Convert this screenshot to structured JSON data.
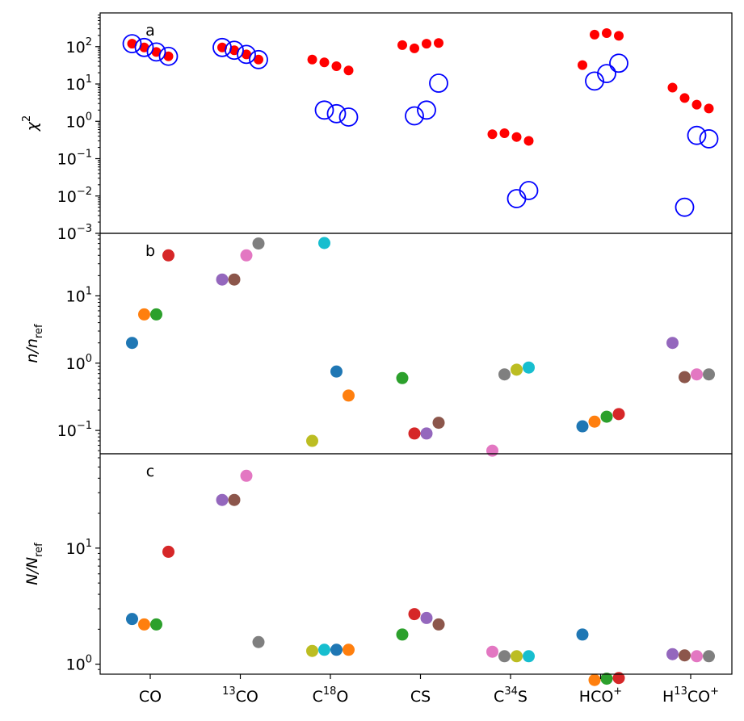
{
  "chart_data": {
    "type": "scatter",
    "x_categories": [
      {
        "base": "CO",
        "sup": "",
        "pre": "",
        "suffix": "",
        "supEnd": ""
      },
      {
        "base": "CO",
        "sup": "",
        "pre": "13",
        "suffix": "",
        "supEnd": ""
      },
      {
        "base": "C",
        "sup": "18",
        "pre": "",
        "suffix": "O",
        "supEnd": ""
      },
      {
        "base": "CS",
        "sup": "",
        "pre": "",
        "suffix": "",
        "supEnd": ""
      },
      {
        "base": "C",
        "sup": "34",
        "pre": "",
        "suffix": "S",
        "supEnd": ""
      },
      {
        "base": "HCO",
        "sup": "",
        "pre": "",
        "suffix": "",
        "supEnd": "+"
      },
      {
        "base": "H",
        "sup": "13",
        "pre": "",
        "suffix": "CO",
        "supEnd": "+"
      }
    ],
    "panels": [
      {
        "label": "a",
        "ylabel_base": "χ",
        "ylabel_sup": "2",
        "ylabel_sub": "",
        "ylim": [
          0.001,
          800
        ],
        "yticks": [
          {
            "value": 100,
            "mant": "10",
            "exp": "2"
          },
          {
            "value": 10,
            "mant": "10",
            "exp": "1"
          },
          {
            "value": 1,
            "mant": "10",
            "exp": "0"
          },
          {
            "value": 0.1,
            "mant": "10",
            "exp": "−1"
          },
          {
            "value": 0.01,
            "mant": "10",
            "exp": "−2"
          },
          {
            "value": 0.001,
            "mant": "10",
            "exp": "−3"
          }
        ],
        "series": [
          {
            "name": "red dots",
            "marker": "filled",
            "color": "#ff0000",
            "points": [
              [
                0,
                -0.3,
                120
              ],
              [
                0,
                -0.1,
                95
              ],
              [
                0,
                0.1,
                72
              ],
              [
                0,
                0.3,
                55
              ],
              [
                1,
                -0.3,
                95
              ],
              [
                1,
                -0.1,
                80
              ],
              [
                1,
                0.1,
                62
              ],
              [
                1,
                0.3,
                45
              ],
              [
                2,
                -0.3,
                45
              ],
              [
                2,
                -0.1,
                38
              ],
              [
                2,
                0.1,
                30
              ],
              [
                2,
                0.3,
                23
              ],
              [
                3,
                -0.3,
                110
              ],
              [
                3,
                -0.1,
                90
              ],
              [
                3,
                0.1,
                120
              ],
              [
                3,
                0.3,
                125
              ],
              [
                4,
                -0.3,
                0.45
              ],
              [
                4,
                -0.1,
                0.48
              ],
              [
                4,
                0.1,
                0.38
              ],
              [
                4,
                0.3,
                0.3
              ],
              [
                5,
                -0.3,
                32
              ],
              [
                5,
                -0.1,
                210
              ],
              [
                5,
                0.1,
                230
              ],
              [
                5,
                0.3,
                195
              ],
              [
                6,
                -0.3,
                8
              ],
              [
                6,
                -0.1,
                4.2
              ],
              [
                6,
                0.1,
                2.8
              ],
              [
                6,
                0.3,
                2.2
              ]
            ]
          },
          {
            "name": "blue circles",
            "marker": "open",
            "color": "#0000ff",
            "points": [
              [
                0,
                -0.3,
                120
              ],
              [
                0,
                -0.1,
                95
              ],
              [
                0,
                0.1,
                72
              ],
              [
                0,
                0.3,
                55
              ],
              [
                1,
                -0.3,
                95
              ],
              [
                1,
                -0.1,
                80
              ],
              [
                1,
                0.1,
                62
              ],
              [
                1,
                0.3,
                45
              ],
              [
                2,
                -0.1,
                2.0
              ],
              [
                2,
                0.1,
                1.6
              ],
              [
                2,
                0.3,
                1.3
              ],
              [
                3,
                -0.1,
                1.4
              ],
              [
                3,
                0.1,
                2.0
              ],
              [
                3,
                0.3,
                10.5
              ],
              [
                4,
                0.1,
                0.0085
              ],
              [
                4,
                0.3,
                0.014
              ],
              [
                5,
                -0.1,
                12
              ],
              [
                5,
                0.1,
                19
              ],
              [
                5,
                0.3,
                36
              ],
              [
                6,
                -0.1,
                0.005
              ],
              [
                6,
                0.1,
                0.42
              ],
              [
                6,
                0.3,
                0.34
              ]
            ]
          }
        ]
      },
      {
        "label": "b",
        "ylabel_base": "n/n",
        "ylabel_sup": "",
        "ylabel_sub": "ref",
        "ylim": [
          0.045,
          85
        ],
        "yticks": [
          {
            "value": 10,
            "mant": "10",
            "exp": "1"
          },
          {
            "value": 1,
            "mant": "10",
            "exp": "0"
          },
          {
            "value": 0.1,
            "mant": "10",
            "exp": "−1"
          }
        ],
        "series": [
          {
            "name": "dots",
            "marker": "filled",
            "points": [
              [
                0,
                -0.3,
                2.0,
                "#1f77b4"
              ],
              [
                0,
                -0.1,
                5.3,
                "#ff7f0e"
              ],
              [
                0,
                0.1,
                5.3,
                "#2ca02c"
              ],
              [
                0,
                0.3,
                40,
                "#d62728"
              ],
              [
                1,
                -0.3,
                17.5,
                "#9467bd"
              ],
              [
                1,
                -0.1,
                17.5,
                "#8c564b"
              ],
              [
                1,
                0.1,
                40,
                "#e377c2"
              ],
              [
                1,
                0.3,
                60,
                "#7f7f7f"
              ],
              [
                2,
                -0.3,
                0.07,
                "#bcbd22"
              ],
              [
                2,
                -0.1,
                61,
                "#17becf"
              ],
              [
                2,
                0.1,
                0.75,
                "#1f77b4"
              ],
              [
                2,
                0.3,
                0.33,
                "#ff7f0e"
              ],
              [
                3,
                -0.3,
                0.6,
                "#2ca02c"
              ],
              [
                3,
                -0.1,
                0.09,
                "#d62728"
              ],
              [
                3,
                0.1,
                0.09,
                "#9467bd"
              ],
              [
                3,
                0.3,
                0.13,
                "#8c564b"
              ],
              [
                4,
                -0.3,
                0.05,
                "#e377c2"
              ],
              [
                4,
                -0.1,
                0.68,
                "#7f7f7f"
              ],
              [
                4,
                0.1,
                0.8,
                "#bcbd22"
              ],
              [
                4,
                0.3,
                0.86,
                "#17becf"
              ],
              [
                5,
                -0.3,
                0.115,
                "#1f77b4"
              ],
              [
                5,
                -0.1,
                0.135,
                "#ff7f0e"
              ],
              [
                5,
                0.1,
                0.16,
                "#2ca02c"
              ],
              [
                5,
                0.3,
                0.175,
                "#d62728"
              ],
              [
                6,
                -0.3,
                2.0,
                "#9467bd"
              ],
              [
                6,
                -0.1,
                0.62,
                "#8c564b"
              ],
              [
                6,
                0.1,
                0.68,
                "#e377c2"
              ],
              [
                6,
                0.3,
                0.68,
                "#7f7f7f"
              ]
            ]
          }
        ]
      },
      {
        "label": "c",
        "ylabel_base": "N/N",
        "ylabel_sup": "",
        "ylabel_sub": "ref",
        "ylim": [
          0.82,
          65
        ],
        "yticks": [
          {
            "value": 10,
            "mant": "10",
            "exp": "1"
          },
          {
            "value": 1,
            "mant": "10",
            "exp": "0"
          }
        ],
        "series": [
          {
            "name": "dots",
            "marker": "filled",
            "points": [
              [
                0,
                -0.3,
                2.45,
                "#1f77b4"
              ],
              [
                0,
                -0.1,
                2.2,
                "#ff7f0e"
              ],
              [
                0,
                0.1,
                2.2,
                "#2ca02c"
              ],
              [
                0,
                0.3,
                9.3,
                "#d62728"
              ],
              [
                1,
                -0.3,
                26,
                "#9467bd"
              ],
              [
                1,
                -0.1,
                26,
                "#8c564b"
              ],
              [
                1,
                0.1,
                42,
                "#e377c2"
              ],
              [
                1,
                0.3,
                1.55,
                "#7f7f7f"
              ],
              [
                2,
                -0.3,
                1.3,
                "#bcbd22"
              ],
              [
                2,
                -0.1,
                1.33,
                "#17becf"
              ],
              [
                2,
                0.1,
                1.33,
                "#1f77b4"
              ],
              [
                2,
                0.3,
                1.33,
                "#ff7f0e"
              ],
              [
                3,
                -0.3,
                1.8,
                "#2ca02c"
              ],
              [
                3,
                -0.1,
                2.7,
                "#d62728"
              ],
              [
                3,
                0.1,
                2.5,
                "#9467bd"
              ],
              [
                3,
                0.3,
                2.2,
                "#8c564b"
              ],
              [
                4,
                -0.3,
                1.28,
                "#e377c2"
              ],
              [
                4,
                -0.1,
                1.17,
                "#7f7f7f"
              ],
              [
                4,
                0.1,
                1.17,
                "#bcbd22"
              ],
              [
                4,
                0.3,
                1.17,
                "#17becf"
              ],
              [
                5,
                -0.3,
                1.8,
                "#1f77b4"
              ],
              [
                5,
                -0.1,
                0.73,
                "#ff7f0e"
              ],
              [
                5,
                0.1,
                0.75,
                "#2ca02c"
              ],
              [
                5,
                0.3,
                0.76,
                "#d62728"
              ],
              [
                6,
                -0.3,
                1.22,
                "#9467bd"
              ],
              [
                6,
                -0.1,
                1.19,
                "#8c564b"
              ],
              [
                6,
                0.1,
                1.17,
                "#e377c2"
              ],
              [
                6,
                0.3,
                1.17,
                "#7f7f7f"
              ]
            ]
          }
        ]
      }
    ]
  }
}
